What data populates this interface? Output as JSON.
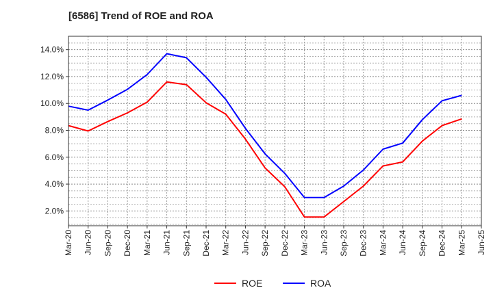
{
  "chart_data": {
    "type": "line",
    "title": "[6586]  Trend of ROE and ROA",
    "x": [
      "Mar-20",
      "Jun-20",
      "Sep-20",
      "Dec-20",
      "Mar-21",
      "Jun-21",
      "Sep-21",
      "Dec-21",
      "Mar-22",
      "Jun-22",
      "Sep-22",
      "Dec-22",
      "Mar-23",
      "Jun-23",
      "Sep-23",
      "Dec-23",
      "Mar-24",
      "Jun-24",
      "Sep-24",
      "Dec-24",
      "Mar-25",
      "Jun-25"
    ],
    "y_ticks": [
      "2.0%",
      "4.0%",
      "6.0%",
      "8.0%",
      "10.0%",
      "12.0%",
      "14.0%"
    ],
    "y_tick_values": [
      2,
      4,
      6,
      8,
      10,
      12,
      14
    ],
    "ylim": [
      0.9,
      15.0
    ],
    "grid": true,
    "legend_position": "bottom-center",
    "series": [
      {
        "name": "ROE",
        "color": "#ff0000",
        "values": [
          8.35,
          7.95,
          8.65,
          9.3,
          10.1,
          11.6,
          11.4,
          10.05,
          9.2,
          7.35,
          5.2,
          3.8,
          1.55,
          1.55,
          2.7,
          3.85,
          5.35,
          5.65,
          7.2,
          8.35,
          8.85,
          null
        ]
      },
      {
        "name": "ROA",
        "color": "#0000ff",
        "values": [
          9.8,
          9.5,
          10.25,
          11.05,
          12.15,
          13.7,
          13.4,
          11.95,
          10.3,
          8.15,
          6.25,
          4.8,
          3.0,
          3.0,
          3.85,
          5.05,
          6.6,
          7.05,
          8.8,
          10.2,
          10.6,
          null
        ]
      }
    ]
  }
}
